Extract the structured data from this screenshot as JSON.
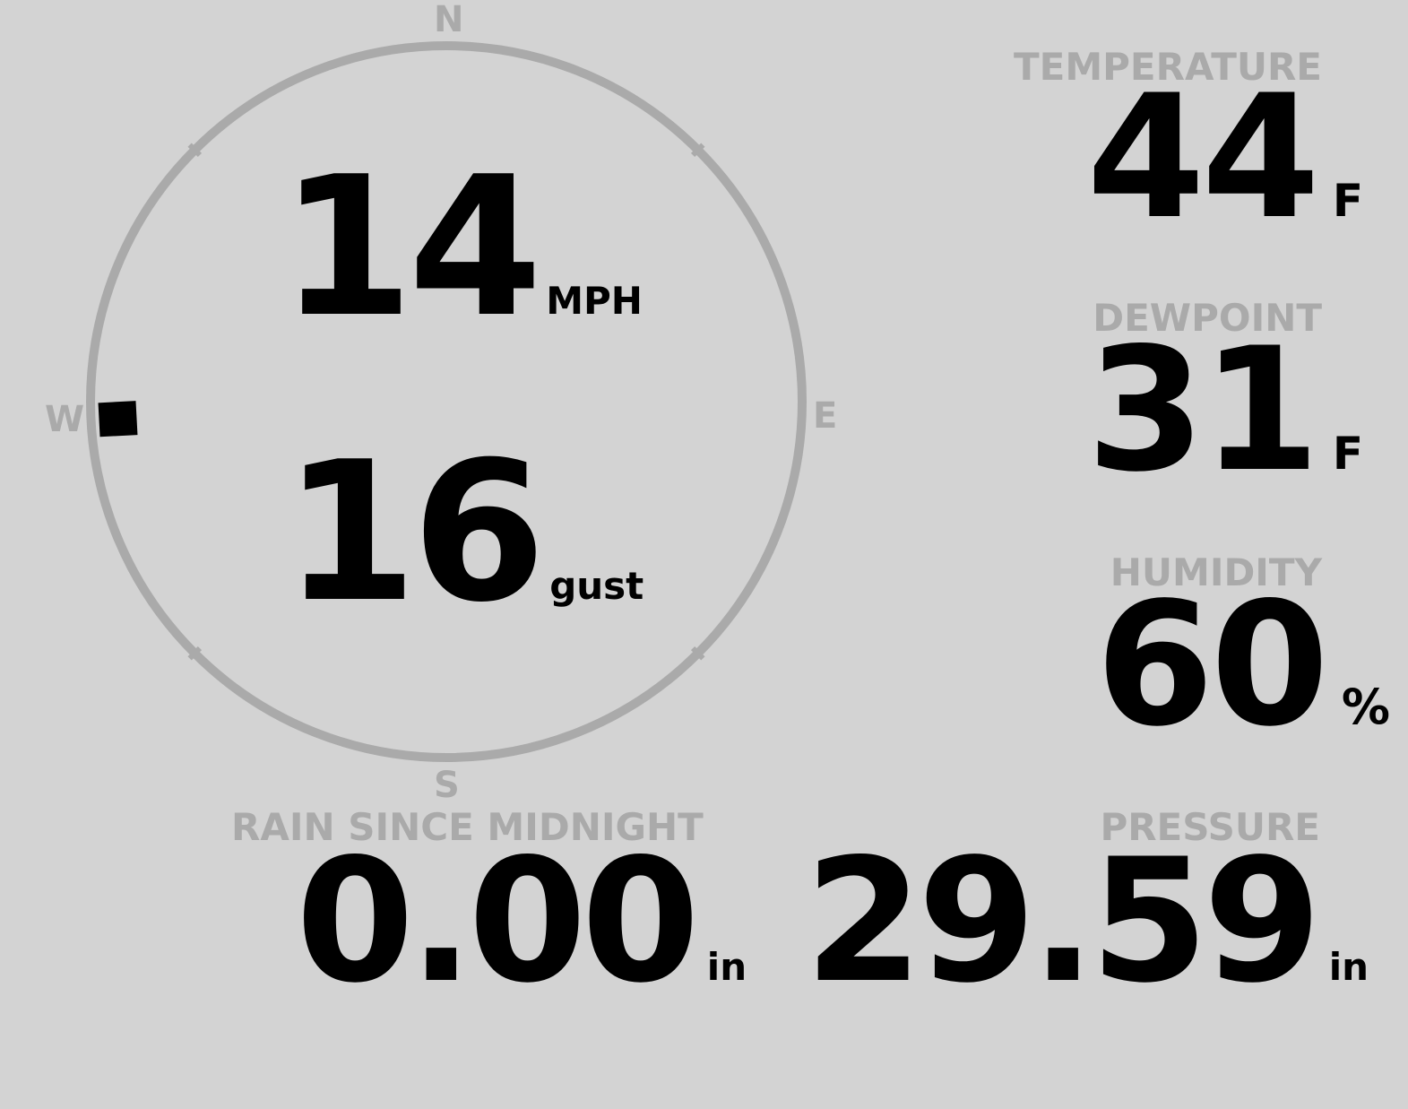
{
  "wind": {
    "speed": "14",
    "speed_unit": "MPH",
    "gust": "16",
    "gust_label": "gust",
    "direction_degrees": 267,
    "cardinals": {
      "n": "N",
      "e": "E",
      "s": "S",
      "w": "W"
    }
  },
  "temperature": {
    "label": "TEMPERATURE",
    "value": "44",
    "unit": "F"
  },
  "dewpoint": {
    "label": "DEWPOINT",
    "value": "31",
    "unit": "F"
  },
  "humidity": {
    "label": "HUMIDITY",
    "value": "60",
    "unit": "%"
  },
  "rain": {
    "label": "RAIN SINCE MIDNIGHT",
    "value": "0.00",
    "unit": "in"
  },
  "pressure": {
    "label": "PRESSURE",
    "value": "29.59",
    "unit": "in"
  },
  "colors": {
    "background": "#d3d3d3",
    "muted": "#aaaaaa",
    "text": "#000000"
  }
}
